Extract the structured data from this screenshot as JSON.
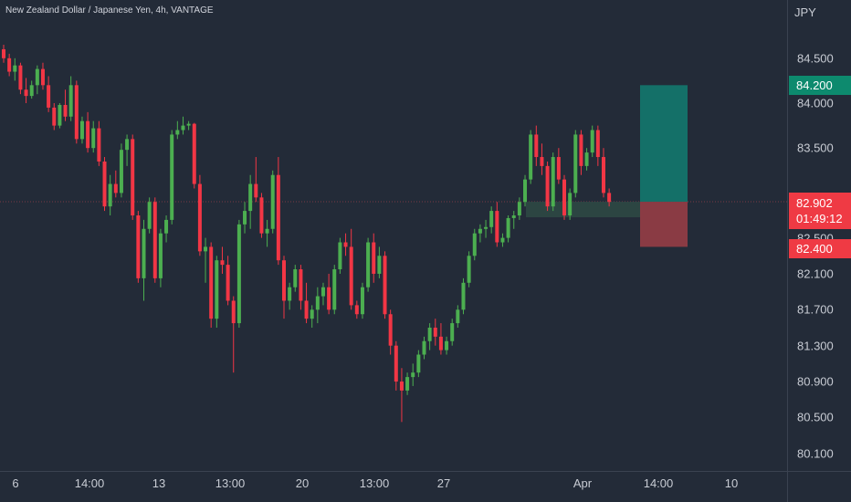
{
  "header": {
    "title": "New Zealand Dollar / Japanese Yen, 4h, VANTAGE",
    "currency": "JPY"
  },
  "price_axis": {
    "labels": [
      "84.500",
      "84.000",
      "83.500",
      "82.900",
      "82.500",
      "82.100",
      "81.700",
      "81.300",
      "80.900",
      "80.500",
      "80.100"
    ]
  },
  "time_axis": {
    "labels": [
      "6",
      "14:00",
      "13",
      "13:00",
      "20",
      "13:00",
      "27",
      "Apr",
      "14:00",
      "10"
    ]
  },
  "position": {
    "take_profit": "84.200",
    "current_price": "82.902",
    "countdown": "01:49:12",
    "stop_loss": "82.400"
  },
  "colors": {
    "background": "#232b38",
    "up": "#4caf50",
    "down": "#f23645",
    "profit_zone": "#147068",
    "loss_zone": "#8a3b44",
    "tp_badge": "#0d8a6e",
    "price_badge": "#ef3a44"
  },
  "chart_data": {
    "type": "candlestick",
    "symbol": "NZDJPY",
    "interval": "4h",
    "ylim": [
      80.0,
      85.0
    ],
    "ohlc": [
      [
        84.6,
        84.65,
        84.45,
        84.5
      ],
      [
        84.5,
        84.55,
        84.3,
        84.35
      ],
      [
        84.35,
        84.5,
        84.25,
        84.42
      ],
      [
        84.42,
        84.45,
        84.1,
        84.15
      ],
      [
        84.15,
        84.28,
        84.0,
        84.08
      ],
      [
        84.08,
        84.25,
        84.05,
        84.2
      ],
      [
        84.2,
        84.42,
        84.1,
        84.38
      ],
      [
        84.38,
        84.45,
        84.15,
        84.2
      ],
      [
        84.2,
        84.3,
        83.9,
        83.95
      ],
      [
        83.95,
        84.0,
        83.7,
        83.75
      ],
      [
        83.75,
        84.0,
        83.72,
        83.98
      ],
      [
        83.98,
        84.15,
        83.8,
        83.85
      ],
      [
        83.85,
        84.3,
        83.8,
        84.2
      ],
      [
        84.2,
        84.25,
        83.55,
        83.6
      ],
      [
        83.6,
        83.85,
        83.55,
        83.8
      ],
      [
        83.8,
        83.9,
        83.45,
        83.5
      ],
      [
        83.5,
        83.8,
        83.45,
        83.72
      ],
      [
        83.72,
        83.8,
        83.3,
        83.35
      ],
      [
        83.35,
        83.4,
        82.8,
        82.85
      ],
      [
        82.85,
        83.2,
        82.75,
        83.1
      ],
      [
        83.1,
        83.25,
        82.95,
        83.0
      ],
      [
        83.0,
        83.55,
        82.95,
        83.48
      ],
      [
        83.48,
        83.65,
        83.3,
        83.6
      ],
      [
        83.6,
        83.65,
        82.7,
        82.75
      ],
      [
        82.75,
        82.8,
        82.0,
        82.05
      ],
      [
        82.05,
        82.7,
        81.8,
        82.6
      ],
      [
        82.6,
        82.95,
        82.55,
        82.9
      ],
      [
        82.9,
        82.95,
        82.0,
        82.05
      ],
      [
        82.05,
        82.6,
        81.95,
        82.55
      ],
      [
        82.55,
        82.75,
        82.45,
        82.7
      ],
      [
        82.7,
        83.7,
        82.65,
        83.65
      ],
      [
        83.65,
        83.8,
        83.6,
        83.7
      ],
      [
        83.7,
        83.85,
        83.65,
        83.75
      ],
      [
        83.75,
        83.8,
        83.7,
        83.77
      ],
      [
        83.77,
        83.78,
        83.05,
        83.1
      ],
      [
        83.1,
        83.2,
        82.3,
        82.35
      ],
      [
        82.35,
        82.5,
        82.0,
        82.4
      ],
      [
        82.4,
        82.45,
        81.5,
        81.6
      ],
      [
        81.6,
        82.3,
        81.5,
        82.25
      ],
      [
        82.25,
        82.4,
        82.1,
        82.2
      ],
      [
        82.2,
        82.3,
        81.75,
        81.8
      ],
      [
        81.8,
        81.85,
        81.0,
        81.55
      ],
      [
        81.55,
        82.7,
        81.5,
        82.65
      ],
      [
        82.65,
        82.9,
        82.55,
        82.8
      ],
      [
        82.8,
        83.2,
        82.6,
        83.1
      ],
      [
        83.1,
        83.4,
        82.9,
        82.95
      ],
      [
        82.95,
        83.0,
        82.5,
        82.55
      ],
      [
        82.55,
        82.7,
        82.4,
        82.6
      ],
      [
        82.6,
        83.25,
        82.55,
        83.2
      ],
      [
        83.2,
        83.4,
        82.2,
        82.25
      ],
      [
        82.25,
        82.3,
        81.6,
        81.8
      ],
      [
        81.8,
        82.0,
        81.7,
        81.95
      ],
      [
        81.95,
        82.2,
        81.9,
        82.15
      ],
      [
        82.15,
        82.2,
        81.7,
        81.8
      ],
      [
        81.8,
        82.0,
        81.55,
        81.6
      ],
      [
        81.6,
        81.75,
        81.5,
        81.7
      ],
      [
        81.7,
        81.95,
        81.55,
        81.85
      ],
      [
        81.85,
        82.0,
        81.75,
        81.95
      ],
      [
        81.95,
        82.1,
        81.65,
        81.7
      ],
      [
        81.7,
        82.2,
        81.65,
        82.15
      ],
      [
        82.15,
        82.5,
        82.1,
        82.45
      ],
      [
        82.45,
        82.55,
        82.3,
        82.4
      ],
      [
        82.4,
        82.6,
        81.7,
        81.75
      ],
      [
        81.75,
        81.8,
        81.6,
        81.65
      ],
      [
        81.65,
        82.0,
        81.6,
        81.95
      ],
      [
        81.95,
        82.5,
        81.9,
        82.45
      ],
      [
        82.45,
        82.55,
        82.0,
        82.1
      ],
      [
        82.1,
        82.4,
        82.05,
        82.3
      ],
      [
        82.3,
        82.35,
        81.6,
        81.65
      ],
      [
        81.65,
        81.7,
        81.2,
        81.3
      ],
      [
        81.3,
        81.35,
        80.8,
        80.9
      ],
      [
        80.9,
        81.05,
        80.45,
        80.8
      ],
      [
        80.8,
        81.0,
        80.75,
        80.95
      ],
      [
        80.95,
        81.1,
        80.85,
        81.0
      ],
      [
        81.0,
        81.25,
        80.95,
        81.2
      ],
      [
        81.2,
        81.4,
        81.15,
        81.35
      ],
      [
        81.35,
        81.55,
        81.25,
        81.5
      ],
      [
        81.5,
        81.6,
        81.3,
        81.4
      ],
      [
        81.4,
        81.55,
        81.2,
        81.25
      ],
      [
        81.25,
        81.4,
        81.2,
        81.35
      ],
      [
        81.35,
        81.6,
        81.3,
        81.55
      ],
      [
        81.55,
        81.75,
        81.5,
        81.7
      ],
      [
        81.7,
        82.05,
        81.65,
        82.0
      ],
      [
        82.0,
        82.35,
        81.95,
        82.3
      ],
      [
        82.3,
        82.6,
        82.25,
        82.55
      ],
      [
        82.55,
        82.65,
        82.45,
        82.6
      ],
      [
        82.6,
        82.7,
        82.5,
        82.62
      ],
      [
        82.62,
        82.85,
        82.55,
        82.8
      ],
      [
        82.8,
        82.9,
        82.4,
        82.45
      ],
      [
        82.45,
        82.55,
        82.4,
        82.5
      ],
      [
        82.5,
        82.75,
        82.45,
        82.72
      ],
      [
        82.72,
        82.8,
        82.6,
        82.75
      ],
      [
        82.75,
        82.95,
        82.7,
        82.9
      ],
      [
        82.9,
        83.2,
        82.85,
        83.15
      ],
      [
        83.15,
        83.7,
        83.1,
        83.65
      ],
      [
        83.65,
        83.75,
        83.3,
        83.4
      ],
      [
        83.4,
        83.55,
        83.2,
        83.3
      ],
      [
        83.3,
        83.35,
        82.8,
        82.85
      ],
      [
        82.85,
        83.45,
        82.8,
        83.4
      ],
      [
        83.4,
        83.5,
        83.1,
        83.15
      ],
      [
        83.15,
        83.2,
        82.7,
        82.75
      ],
      [
        82.75,
        83.05,
        82.7,
        83.0
      ],
      [
        83.0,
        83.7,
        82.95,
        83.65
      ],
      [
        83.65,
        83.7,
        83.2,
        83.3
      ],
      [
        83.3,
        83.5,
        83.25,
        83.45
      ],
      [
        83.45,
        83.75,
        83.4,
        83.7
      ],
      [
        83.7,
        83.75,
        83.3,
        83.4
      ],
      [
        83.4,
        83.5,
        82.95,
        83.0
      ],
      [
        83.0,
        83.05,
        82.85,
        82.9
      ]
    ]
  }
}
